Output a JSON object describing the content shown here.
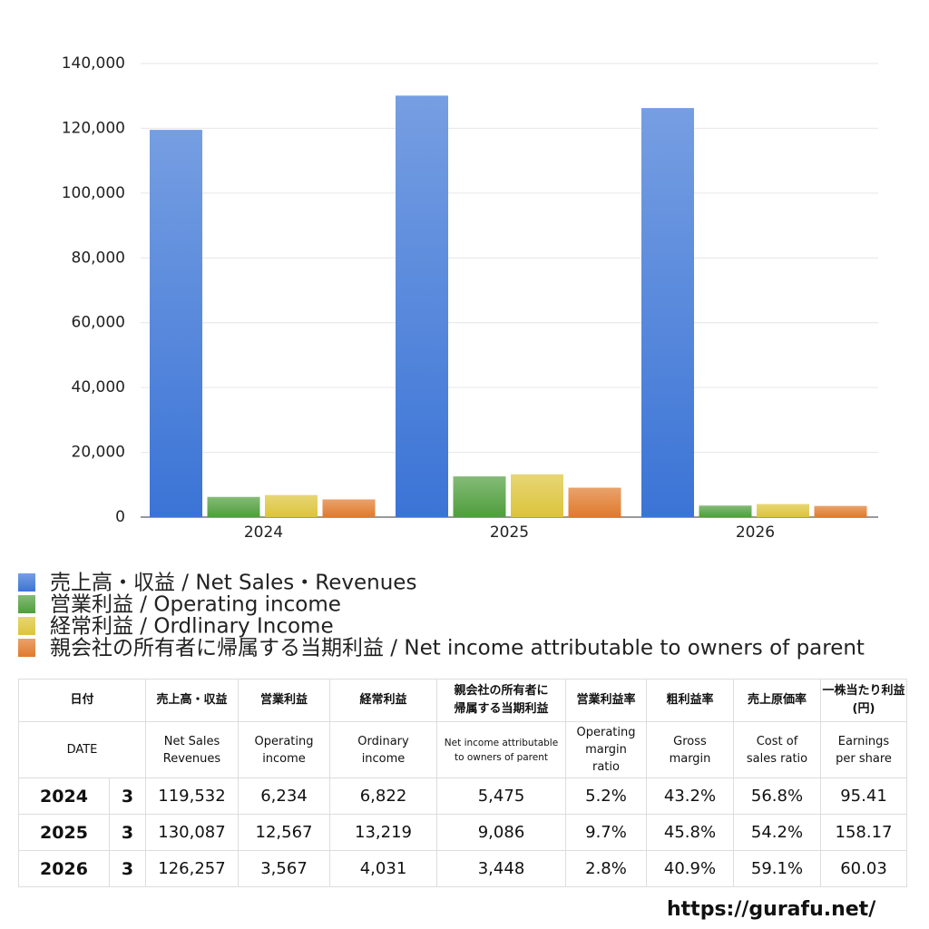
{
  "chart_data": {
    "type": "bar",
    "categories": [
      "2024",
      "2025",
      "2026"
    ],
    "series": [
      {
        "name": "売上高・収益 / Net Sales・Revenues",
        "color": "#3b74d6",
        "values": [
          119532,
          130087,
          126257
        ]
      },
      {
        "name": "営業利益 / Operating income",
        "color": "#4f9e3c",
        "values": [
          6234,
          12567,
          3567
        ]
      },
      {
        "name": "経常利益 / Ordlinary Income",
        "color": "#dcc43a",
        "values": [
          6822,
          13219,
          4031
        ]
      },
      {
        "name": "親会社の所有者に帰属する当期利益 / Net income attributable to owners of parent",
        "color": "#e07a2c",
        "values": [
          5475,
          9086,
          3448
        ]
      }
    ],
    "ylim": [
      0,
      140000
    ],
    "yticks": [
      0,
      {
        "value": 20000,
        "label": "20,000"
      },
      {
        "value": 40000,
        "label": "40,000"
      },
      {
        "value": 60000,
        "label": "60,000"
      },
      {
        "value": 80000,
        "label": "80,000"
      },
      {
        "value": 100000,
        "label": "100,000"
      },
      {
        "value": 120000,
        "label": "120,000"
      },
      {
        "value": 140000,
        "label": "140,000"
      }
    ],
    "grid": true
  },
  "table": {
    "header_ja": [
      "日付",
      "売上高・収益",
      "営業利益",
      "経常利益",
      "親会社の所有者に\n帰属する当期利益",
      "営業利益率",
      "粗利益率",
      "売上原価率",
      "一株当たり利益\n(円)"
    ],
    "header_en": [
      "DATE",
      "Net Sales\nRevenues",
      "Operating\nincome",
      "Ordinary\nincome",
      "Net income attributable\nto owners of parent",
      "Operating\nmargin\nratio",
      "Gross\nmargin",
      "Cost of\nsales ratio",
      "Earnings\nper share"
    ],
    "rows": [
      [
        "2024",
        "3",
        "119,532",
        "6,234",
        "6,822",
        "5,475",
        "5.2%",
        "43.2%",
        "56.8%",
        "95.41"
      ],
      [
        "2025",
        "3",
        "130,087",
        "12,567",
        "13,219",
        "9,086",
        "9.7%",
        "45.8%",
        "54.2%",
        "158.17"
      ],
      [
        "2026",
        "3",
        "126,257",
        "3,567",
        "4,031",
        "3,448",
        "2.8%",
        "40.9%",
        "59.1%",
        "60.03"
      ]
    ]
  },
  "footer": "https://gurafu.net/"
}
